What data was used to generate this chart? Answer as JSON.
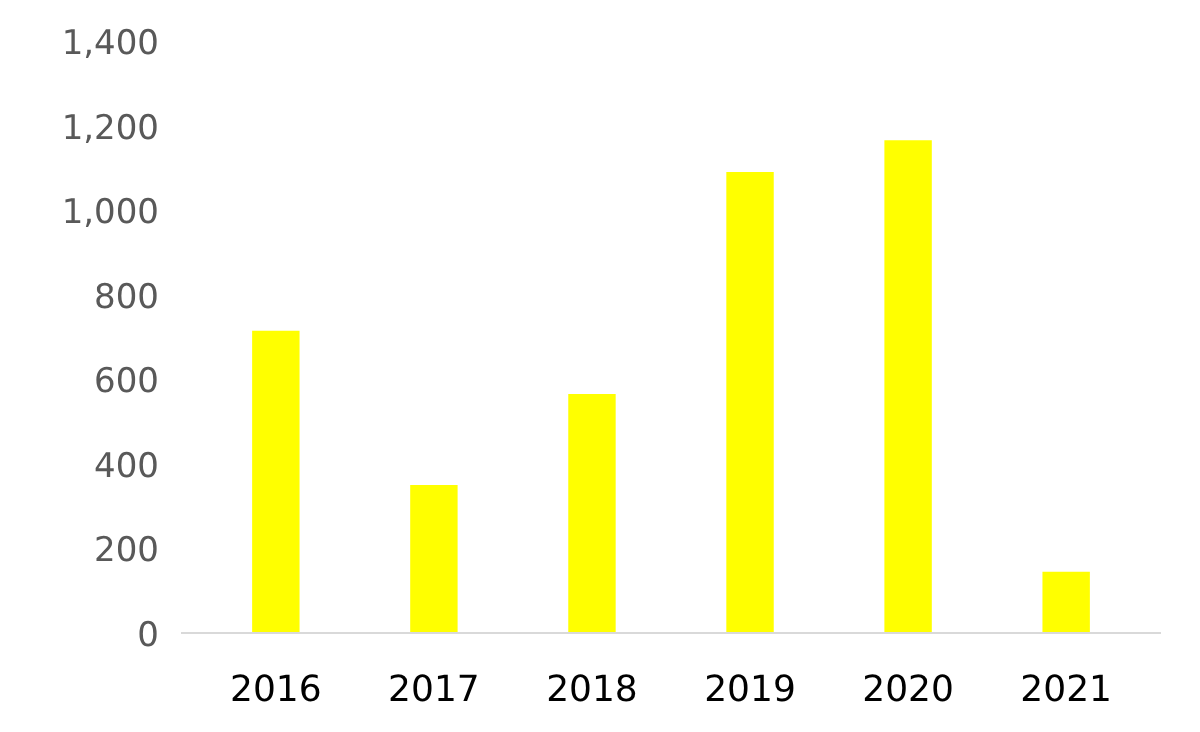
{
  "chart_data": {
    "type": "bar",
    "categories": [
      "2016",
      "2017",
      "2018",
      "2019",
      "2020",
      "2021"
    ],
    "values": [
      715,
      350,
      565,
      1090,
      1165,
      145
    ],
    "color": "#ffff00",
    "ylim": [
      0,
      1400
    ],
    "yticks": [
      0,
      200,
      400,
      600,
      800,
      {
        "value": 1000,
        "label": "1,000"
      },
      {
        "value": 1200,
        "label": "1,200"
      },
      {
        "value": 1400,
        "label": "1,400"
      }
    ]
  }
}
